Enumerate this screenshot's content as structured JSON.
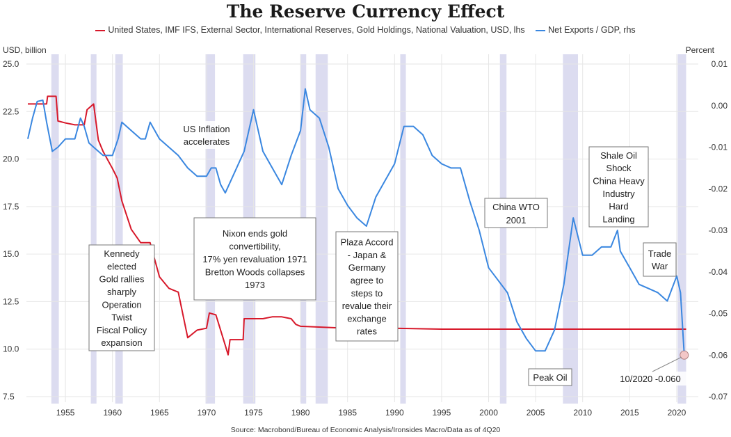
{
  "title": "The Reserve Currency Effect",
  "source": "Source: Macrobond/Bureau of Economic Analysis/Ironsides Macro/Data as of 4Q20",
  "colors": {
    "gold": "#d7182a",
    "exports": "#3a87e0",
    "recession": "#dcdcf0",
    "grid": "#e6e6e6"
  },
  "chart_data": {
    "type": "line",
    "xlim": [
      1951,
      2022
    ],
    "ylim_left": [
      7.5,
      25.0
    ],
    "ylim_right": [
      -0.07,
      0.01
    ],
    "ylabel_left": "USD, billion",
    "ylabel_right": "Percent",
    "x_ticks": [
      1955,
      1960,
      1965,
      1970,
      1975,
      1980,
      1985,
      1990,
      1995,
      2000,
      2005,
      2010,
      2015,
      2020
    ],
    "y_left_ticks": [
      "25.0",
      "22.5",
      "20.0",
      "17.5",
      "15.0",
      "12.5",
      "10.0",
      "7.5"
    ],
    "y_right_ticks": [
      "0.01",
      "0.00",
      "-0.01",
      "-0.02",
      "-0.03",
      "-0.04",
      "-0.05",
      "-0.06",
      "-0.07"
    ],
    "recessions": [
      [
        1953.5,
        1954.3
      ],
      [
        1957.7,
        1958.3
      ],
      [
        1960.3,
        1961.1
      ],
      [
        1969.9,
        1970.9
      ],
      [
        1973.9,
        1975.2
      ],
      [
        1980.0,
        1980.6
      ],
      [
        1981.6,
        1982.9
      ],
      [
        1990.6,
        1991.2
      ],
      [
        2001.2,
        2001.9
      ],
      [
        2007.9,
        2009.5
      ],
      [
        2020.1,
        2021.0
      ]
    ],
    "series": [
      {
        "name": "United States, IMF IFS, External Sector, International Reserves, Gold Holdings, National Valuation, USD, lhs",
        "axis": "left",
        "points": [
          [
            1951,
            22.9
          ],
          [
            1953,
            22.9
          ],
          [
            1953.1,
            23.3
          ],
          [
            1954,
            23.3
          ],
          [
            1954.2,
            22.0
          ],
          [
            1955,
            21.9
          ],
          [
            1956,
            21.8
          ],
          [
            1957,
            21.8
          ],
          [
            1957.3,
            22.6
          ],
          [
            1958,
            22.9
          ],
          [
            1958.5,
            21.0
          ],
          [
            1959,
            20.4
          ],
          [
            1960,
            19.5
          ],
          [
            1960.5,
            19.0
          ],
          [
            1961,
            17.8
          ],
          [
            1962,
            16.3
          ],
          [
            1963,
            15.6
          ],
          [
            1964,
            15.6
          ],
          [
            1965,
            13.8
          ],
          [
            1966,
            13.2
          ],
          [
            1967,
            13.0
          ],
          [
            1968,
            10.6
          ],
          [
            1969,
            11.0
          ],
          [
            1970,
            11.1
          ],
          [
            1970.3,
            11.9
          ],
          [
            1971,
            11.8
          ],
          [
            1972,
            10.2
          ],
          [
            1972.3,
            9.7
          ],
          [
            1972.5,
            10.5
          ],
          [
            1973.9,
            10.5
          ],
          [
            1974,
            11.6
          ],
          [
            1975,
            11.6
          ],
          [
            1976,
            11.6
          ],
          [
            1977,
            11.7
          ],
          [
            1978,
            11.7
          ],
          [
            1979,
            11.6
          ],
          [
            1979.5,
            11.3
          ],
          [
            1980,
            11.2
          ],
          [
            1985,
            11.1
          ],
          [
            1990,
            11.1
          ],
          [
            1995,
            11.05
          ],
          [
            2000,
            11.05
          ],
          [
            2005,
            11.05
          ],
          [
            2010,
            11.05
          ],
          [
            2015,
            11.05
          ],
          [
            2021,
            11.05
          ]
        ]
      },
      {
        "name": "Net Exports / GDP, rhs",
        "axis": "right",
        "points": [
          [
            1951,
            -0.008
          ],
          [
            1951.5,
            -0.003
          ],
          [
            1952,
            0.001
          ],
          [
            1952.6,
            0.0013
          ],
          [
            1953,
            -0.004
          ],
          [
            1953.6,
            -0.011
          ],
          [
            1954.2,
            -0.01
          ],
          [
            1955,
            -0.008
          ],
          [
            1956,
            -0.008
          ],
          [
            1956.6,
            -0.003
          ],
          [
            1957,
            -0.005
          ],
          [
            1957.5,
            -0.009
          ],
          [
            1958,
            -0.01
          ],
          [
            1959,
            -0.012
          ],
          [
            1960,
            -0.012
          ],
          [
            1960.6,
            -0.008
          ],
          [
            1961,
            -0.004
          ],
          [
            1962,
            -0.006
          ],
          [
            1963,
            -0.008
          ],
          [
            1963.5,
            -0.008
          ],
          [
            1964,
            -0.004
          ],
          [
            1965,
            -0.008
          ],
          [
            1966,
            -0.01
          ],
          [
            1967,
            -0.012
          ],
          [
            1968,
            -0.015
          ],
          [
            1969,
            -0.017
          ],
          [
            1970,
            -0.017
          ],
          [
            1970.5,
            -0.015
          ],
          [
            1971,
            -0.015
          ],
          [
            1971.5,
            -0.019
          ],
          [
            1972,
            -0.021
          ],
          [
            1973,
            -0.016
          ],
          [
            1974,
            -0.011
          ],
          [
            1975,
            -0.001
          ],
          [
            1976,
            -0.011
          ],
          [
            1977,
            -0.015
          ],
          [
            1978,
            -0.019
          ],
          [
            1979,
            -0.012
          ],
          [
            1980,
            -0.006
          ],
          [
            1980.5,
            0.004
          ],
          [
            1981,
            -0.001
          ],
          [
            1982,
            -0.003
          ],
          [
            1983,
            -0.01
          ],
          [
            1984,
            -0.02
          ],
          [
            1985,
            -0.024
          ],
          [
            1986,
            -0.027
          ],
          [
            1987,
            -0.029
          ],
          [
            1988,
            -0.022
          ],
          [
            1989,
            -0.018
          ],
          [
            1990,
            -0.014
          ],
          [
            1991,
            -0.005
          ],
          [
            1992,
            -0.005
          ],
          [
            1993,
            -0.007
          ],
          [
            1994,
            -0.012
          ],
          [
            1995,
            -0.014
          ],
          [
            1996,
            -0.015
          ],
          [
            1997,
            -0.015
          ],
          [
            1998,
            -0.023
          ],
          [
            1999,
            -0.03
          ],
          [
            2000,
            -0.039
          ],
          [
            2001,
            -0.042
          ],
          [
            2002,
            -0.045
          ],
          [
            2003,
            -0.052
          ],
          [
            2004,
            -0.056
          ],
          [
            2005,
            -0.059
          ],
          [
            2006,
            -0.059
          ],
          [
            2007,
            -0.054
          ],
          [
            2008,
            -0.043
          ],
          [
            2009,
            -0.027
          ],
          [
            2010,
            -0.036
          ],
          [
            2011,
            -0.036
          ],
          [
            2012,
            -0.034
          ],
          [
            2013,
            -0.034
          ],
          [
            2013.7,
            -0.03
          ],
          [
            2014,
            -0.035
          ],
          [
            2015,
            -0.039
          ],
          [
            2016,
            -0.043
          ],
          [
            2017,
            -0.044
          ],
          [
            2018,
            -0.045
          ],
          [
            2019,
            -0.047
          ],
          [
            2019.5,
            -0.044
          ],
          [
            2020,
            -0.041
          ],
          [
            2020.4,
            -0.045
          ],
          [
            2020.8,
            -0.06
          ]
        ]
      }
    ],
    "annotations": [
      {
        "lines": [
          "Kennedy",
          "elected",
          "Gold rallies",
          "sharply",
          "Operation",
          "Twist",
          "Fiscal Policy",
          "expansion"
        ]
      },
      {
        "lines": [
          "US Inflation",
          "accelerates"
        ]
      },
      {
        "lines": [
          "Nixon ends gold",
          "convertibility,",
          "17% yen revaluation 1971",
          "Bretton Woods collapses",
          "1973"
        ]
      },
      {
        "lines": [
          "Plaza Accord",
          "- Japan &",
          "Germany",
          "agree to",
          "steps to",
          "revalue their",
          "exchange",
          "rates"
        ]
      },
      {
        "lines": [
          "China WTO",
          "2001"
        ]
      },
      {
        "lines": [
          "Shale Oil",
          "Shock",
          "China Heavy",
          "Industry",
          "Hard",
          "Landing"
        ]
      },
      {
        "lines": [
          "Trade",
          "War"
        ]
      },
      {
        "lines": [
          "Peak Oil"
        ]
      },
      {
        "lines": [
          "10/2020 -0.060"
        ]
      }
    ]
  }
}
